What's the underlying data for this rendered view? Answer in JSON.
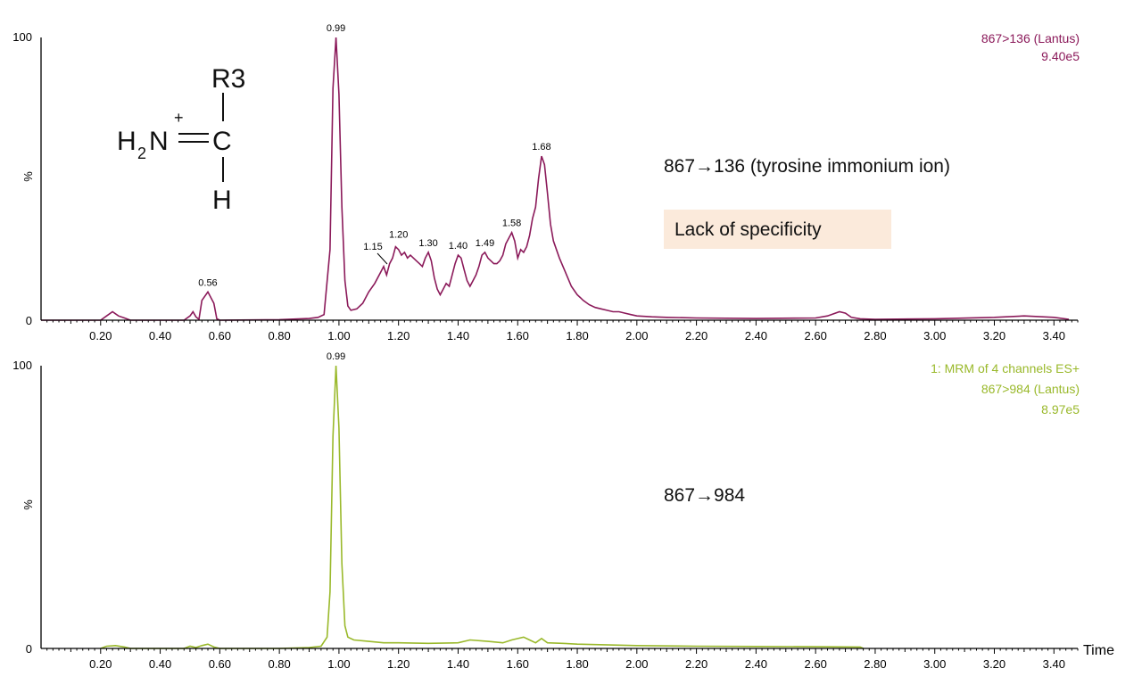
{
  "chart_data": [
    {
      "type": "line",
      "xlabel": "",
      "ylabel": "%",
      "xlim": [
        0,
        3.48
      ],
      "ylim": [
        0,
        100
      ],
      "x_ticks": [
        "0.20",
        "0.40",
        "0.60",
        "0.80",
        "1.00",
        "1.20",
        "1.40",
        "1.60",
        "1.80",
        "2.00",
        "2.20",
        "2.40",
        "2.60",
        "2.80",
        "3.00",
        "3.20",
        "3.40"
      ],
      "y_tick_labels": {
        "top": "100",
        "bottom": "0"
      },
      "color": "#8b1a5a",
      "info_lines": [
        "867>136 (Lantus)",
        "9.40e5"
      ],
      "annotation": "867→136 (tyrosine immonium ion)",
      "highlight_box": "Lack of specificity",
      "peak_labels": [
        {
          "x": 0.99,
          "y": 100,
          "label": "0.99"
        },
        {
          "x": 0.56,
          "y": 10,
          "label": "0.56"
        },
        {
          "x": 1.15,
          "y": 19,
          "label": "1.15"
        },
        {
          "x": 1.2,
          "y": 26,
          "label": "1.20"
        },
        {
          "x": 1.3,
          "y": 24,
          "label": "1.30"
        },
        {
          "x": 1.4,
          "y": 23,
          "label": "1.40"
        },
        {
          "x": 1.49,
          "y": 24,
          "label": "1.49"
        },
        {
          "x": 1.58,
          "y": 31,
          "label": "1.58"
        },
        {
          "x": 1.68,
          "y": 58,
          "label": "1.68"
        }
      ],
      "points": [
        [
          0.0,
          0
        ],
        [
          0.2,
          0
        ],
        [
          0.22,
          1.5
        ],
        [
          0.24,
          3
        ],
        [
          0.26,
          1.5
        ],
        [
          0.28,
          0.8
        ],
        [
          0.3,
          0
        ],
        [
          0.48,
          0
        ],
        [
          0.5,
          1.5
        ],
        [
          0.51,
          3
        ],
        [
          0.52,
          1.2
        ],
        [
          0.53,
          0.3
        ],
        [
          0.54,
          7
        ],
        [
          0.56,
          10
        ],
        [
          0.58,
          6
        ],
        [
          0.59,
          0.5
        ],
        [
          0.6,
          0
        ],
        [
          0.8,
          0.2
        ],
        [
          0.9,
          0.6
        ],
        [
          0.93,
          1
        ],
        [
          0.95,
          2
        ],
        [
          0.97,
          25
        ],
        [
          0.98,
          82
        ],
        [
          0.99,
          100
        ],
        [
          1.0,
          80
        ],
        [
          1.01,
          40
        ],
        [
          1.02,
          14
        ],
        [
          1.03,
          5
        ],
        [
          1.04,
          3.5
        ],
        [
          1.06,
          4
        ],
        [
          1.08,
          6
        ],
        [
          1.1,
          10
        ],
        [
          1.12,
          13
        ],
        [
          1.14,
          17
        ],
        [
          1.15,
          19
        ],
        [
          1.16,
          16
        ],
        [
          1.17,
          20
        ],
        [
          1.18,
          22
        ],
        [
          1.19,
          26
        ],
        [
          1.2,
          25
        ],
        [
          1.21,
          23
        ],
        [
          1.22,
          24
        ],
        [
          1.23,
          22
        ],
        [
          1.24,
          23
        ],
        [
          1.25,
          22
        ],
        [
          1.26,
          21
        ],
        [
          1.27,
          20
        ],
        [
          1.28,
          19
        ],
        [
          1.29,
          22
        ],
        [
          1.3,
          24
        ],
        [
          1.31,
          21
        ],
        [
          1.32,
          15
        ],
        [
          1.33,
          11
        ],
        [
          1.34,
          9
        ],
        [
          1.35,
          11
        ],
        [
          1.36,
          13
        ],
        [
          1.37,
          12
        ],
        [
          1.38,
          16
        ],
        [
          1.39,
          20
        ],
        [
          1.4,
          23
        ],
        [
          1.41,
          22
        ],
        [
          1.42,
          18
        ],
        [
          1.43,
          14
        ],
        [
          1.44,
          12
        ],
        [
          1.45,
          14
        ],
        [
          1.46,
          16
        ],
        [
          1.47,
          19
        ],
        [
          1.48,
          23
        ],
        [
          1.49,
          24
        ],
        [
          1.5,
          22
        ],
        [
          1.51,
          21
        ],
        [
          1.52,
          20
        ],
        [
          1.53,
          20
        ],
        [
          1.54,
          21
        ],
        [
          1.55,
          23
        ],
        [
          1.56,
          27
        ],
        [
          1.58,
          31
        ],
        [
          1.59,
          28
        ],
        [
          1.6,
          22
        ],
        [
          1.61,
          25
        ],
        [
          1.62,
          24
        ],
        [
          1.63,
          26
        ],
        [
          1.64,
          30
        ],
        [
          1.65,
          36
        ],
        [
          1.66,
          40
        ],
        [
          1.67,
          50
        ],
        [
          1.68,
          58
        ],
        [
          1.69,
          55
        ],
        [
          1.7,
          45
        ],
        [
          1.71,
          34
        ],
        [
          1.72,
          28
        ],
        [
          1.74,
          22
        ],
        [
          1.76,
          17
        ],
        [
          1.78,
          12
        ],
        [
          1.8,
          9
        ],
        [
          1.81,
          8
        ],
        [
          1.82,
          7
        ],
        [
          1.84,
          5.5
        ],
        [
          1.86,
          4.5
        ],
        [
          1.88,
          4
        ],
        [
          1.9,
          3.5
        ],
        [
          1.92,
          3
        ],
        [
          1.94,
          3
        ],
        [
          1.96,
          2.5
        ],
        [
          1.98,
          2
        ],
        [
          2.0,
          1.5
        ],
        [
          2.05,
          1.2
        ],
        [
          2.1,
          1
        ],
        [
          2.2,
          0.8
        ],
        [
          2.4,
          0.6
        ],
        [
          2.6,
          0.8
        ],
        [
          2.64,
          1.5
        ],
        [
          2.68,
          3
        ],
        [
          2.7,
          2.5
        ],
        [
          2.72,
          1
        ],
        [
          2.75,
          0.5
        ],
        [
          2.8,
          0.3
        ],
        [
          3.0,
          0.5
        ],
        [
          3.2,
          1
        ],
        [
          3.3,
          1.5
        ],
        [
          3.4,
          1
        ],
        [
          3.45,
          0.3
        ]
      ]
    },
    {
      "type": "line",
      "xlabel": "Time",
      "ylabel": "%",
      "xlim": [
        0,
        3.48
      ],
      "ylim": [
        0,
        100
      ],
      "x_ticks": [
        "0.20",
        "0.40",
        "0.60",
        "0.80",
        "1.00",
        "1.20",
        "1.40",
        "1.60",
        "1.80",
        "2.00",
        "2.20",
        "2.40",
        "2.60",
        "2.80",
        "3.00",
        "3.20",
        "3.40"
      ],
      "y_tick_labels": {
        "top": "100",
        "bottom": "0"
      },
      "color": "#9ab92b",
      "info_lines": [
        "1: MRM of 4 channels ES+",
        "867>984 (Lantus)",
        "8.97e5"
      ],
      "annotation": "867→984",
      "peak_labels": [
        {
          "x": 0.99,
          "y": 100,
          "label": "0.99"
        }
      ],
      "points": [
        [
          0.2,
          0
        ],
        [
          0.22,
          0.8
        ],
        [
          0.25,
          1
        ],
        [
          0.28,
          0.5
        ],
        [
          0.3,
          0
        ],
        [
          0.48,
          0
        ],
        [
          0.5,
          0.8
        ],
        [
          0.52,
          0.3
        ],
        [
          0.54,
          1
        ],
        [
          0.56,
          1.5
        ],
        [
          0.58,
          0.5
        ],
        [
          0.6,
          0
        ],
        [
          0.8,
          0
        ],
        [
          0.9,
          0.3
        ],
        [
          0.94,
          0.8
        ],
        [
          0.96,
          4
        ],
        [
          0.97,
          20
        ],
        [
          0.98,
          75
        ],
        [
          0.99,
          100
        ],
        [
          1.0,
          78
        ],
        [
          1.01,
          30
        ],
        [
          1.02,
          8
        ],
        [
          1.03,
          4
        ],
        [
          1.05,
          3
        ],
        [
          1.1,
          2.5
        ],
        [
          1.15,
          2
        ],
        [
          1.2,
          2
        ],
        [
          1.3,
          1.8
        ],
        [
          1.4,
          2
        ],
        [
          1.44,
          3
        ],
        [
          1.5,
          2.5
        ],
        [
          1.55,
          2
        ],
        [
          1.58,
          3
        ],
        [
          1.6,
          3.5
        ],
        [
          1.62,
          4
        ],
        [
          1.64,
          3
        ],
        [
          1.66,
          2
        ],
        [
          1.68,
          3.5
        ],
        [
          1.7,
          2
        ],
        [
          1.75,
          1.8
        ],
        [
          1.8,
          1.5
        ],
        [
          2.0,
          1
        ],
        [
          2.2,
          0.8
        ],
        [
          2.4,
          0.7
        ],
        [
          2.6,
          0.6
        ],
        [
          2.75,
          0.5
        ],
        [
          2.76,
          0
        ]
      ]
    }
  ],
  "structure": {
    "r3": "R3",
    "h2": "H",
    "sub2": "2",
    "n": "N",
    "plus": "+",
    "c": "C",
    "h": "H"
  }
}
